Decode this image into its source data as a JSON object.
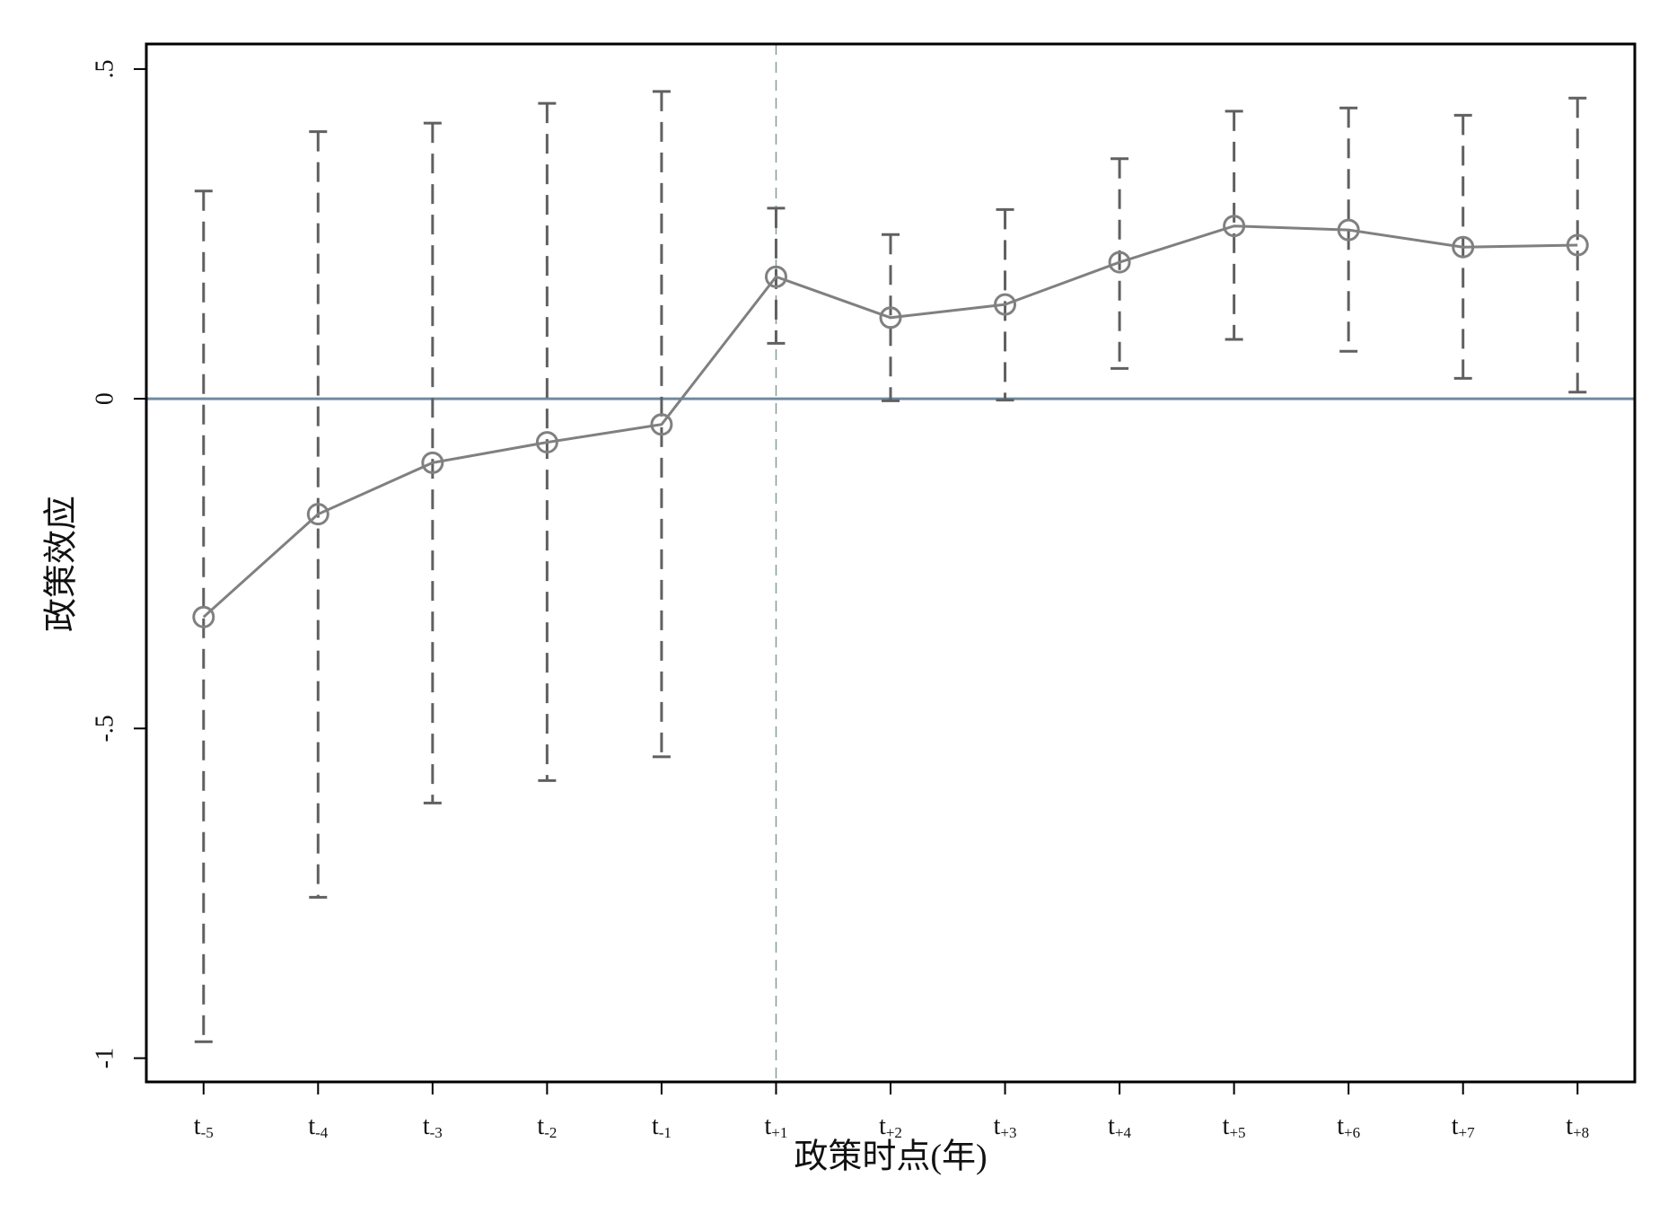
{
  "chart_data": {
    "type": "errorbar",
    "x_label": "政策时点(年)",
    "y_label": "政策效应",
    "categories": [
      "t-5",
      "t-4",
      "t-3",
      "t-2",
      "t-1",
      "t+1",
      "t+2",
      "t+3",
      "t+4",
      "t+5",
      "t+6",
      "t+7",
      "t+8"
    ],
    "series": [
      {
        "color": "#808080",
        "bar_color": "#606060",
        "values": [
          -0.331,
          -0.175,
          -0.097,
          -0.066,
          -0.039,
          0.185,
          0.123,
          0.143,
          0.207,
          0.262,
          0.256,
          0.23,
          0.233
        ],
        "lower": [
          -0.975,
          -0.756,
          -0.613,
          -0.579,
          -0.543,
          0.084,
          -0.003,
          -0.002,
          0.046,
          0.09,
          0.072,
          0.031,
          0.01
        ],
        "upper": [
          0.315,
          0.405,
          0.418,
          0.448,
          0.466,
          0.289,
          0.249,
          0.287,
          0.364,
          0.436,
          0.441,
          0.43,
          0.456
        ]
      }
    ],
    "ylim": [
      -1.036,
      0.538
    ],
    "yticks": [
      -1,
      {
        "value": -0.5,
        "label": "-.5"
      },
      0,
      {
        "value": 0.5,
        "label": ".5"
      }
    ],
    "hline": 0,
    "hline_color": "#6f8ba0",
    "vline": "t+1",
    "vline_color": "#8a9a9a",
    "grid": false
  }
}
